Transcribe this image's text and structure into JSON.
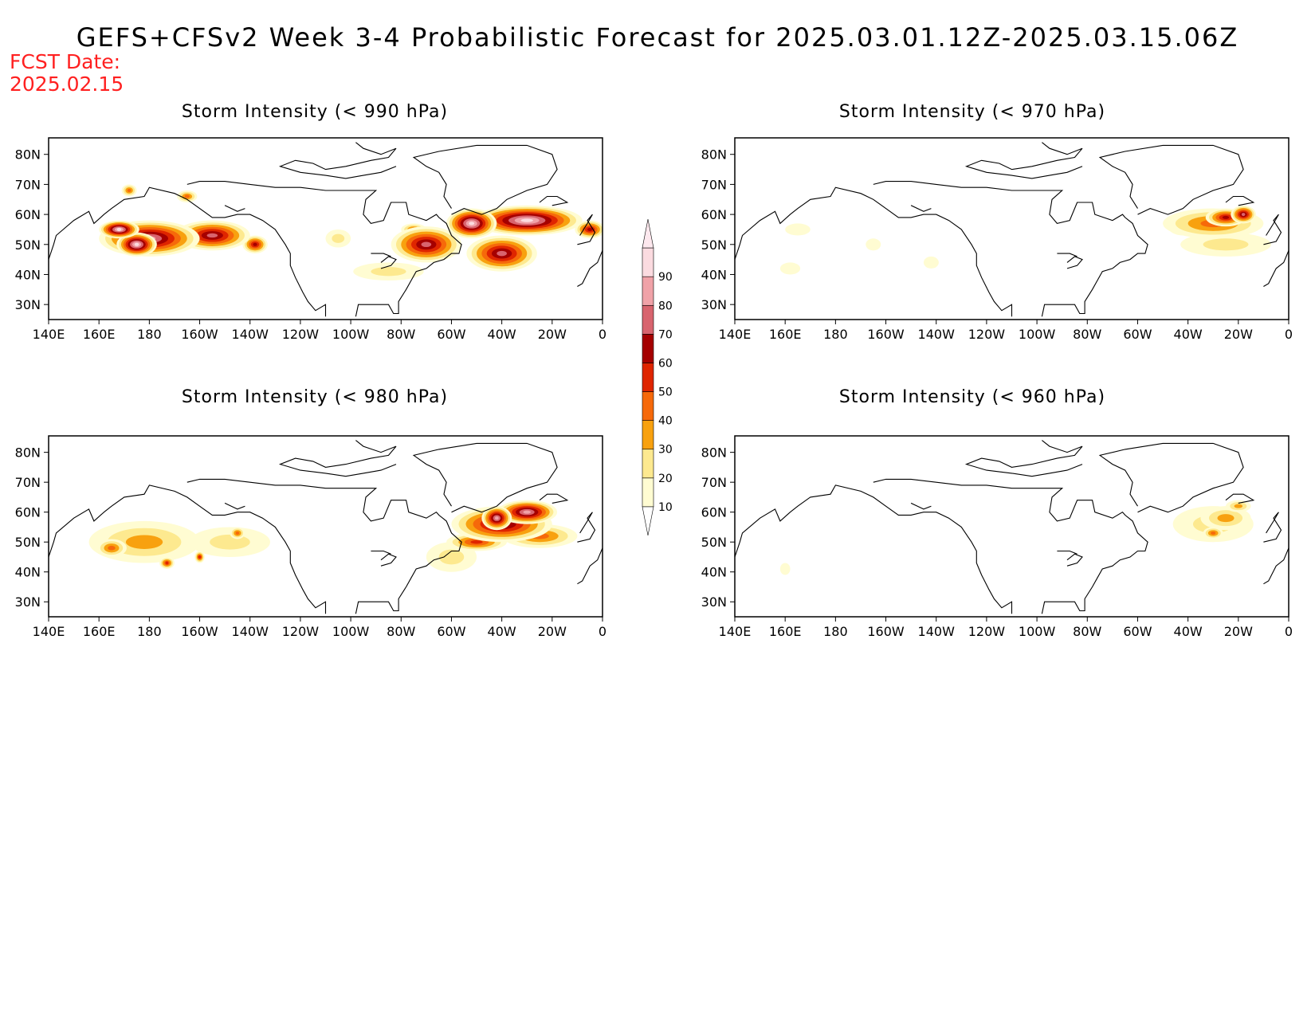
{
  "title": "GEFS+CFSv2 Week 3-4 Probabilistic Forecast for 2025.03.01.12Z-2025.03.15.06Z",
  "fcst_label": "FCST Date:",
  "fcst_date": "2025.02.15",
  "colorbar": {
    "levels": [
      "10",
      "20",
      "30",
      "40",
      "50",
      "60",
      "70",
      "80",
      "90"
    ],
    "colors": [
      "#fffcd2",
      "#fde98f",
      "#f8a10f",
      "#f6690a",
      "#df2500",
      "#a50000",
      "#d8646e",
      "#f0a2a8",
      "#fbdbe0"
    ]
  },
  "axes": {
    "lat_labels": [
      "80N",
      "70N",
      "60N",
      "50N",
      "40N",
      "30N"
    ],
    "lon_labels": [
      "140E",
      "160E",
      "180",
      "160W",
      "140W",
      "120W",
      "100W",
      "80W",
      "60W",
      "40W",
      "20W",
      "0"
    ]
  },
  "panels": [
    {
      "title": "Storm Intensity (< 990 hPa)",
      "blobs": [
        [
          180,
          52,
          20,
          6,
          80
        ],
        [
          175,
          50,
          8,
          4,
          90
        ],
        [
          205,
          53,
          15,
          5,
          70
        ],
        [
          222,
          50,
          5,
          3,
          60
        ],
        [
          168,
          55,
          8,
          3,
          90
        ],
        [
          290,
          50,
          14,
          6,
          70
        ],
        [
          320,
          47,
          14,
          6,
          70
        ],
        [
          330,
          58,
          22,
          5,
          90
        ],
        [
          308,
          57,
          10,
          5,
          90
        ],
        [
          355,
          55,
          6,
          3,
          60
        ],
        [
          275,
          41,
          14,
          3,
          20
        ],
        [
          255,
          52,
          5,
          3,
          20
        ],
        [
          285,
          55,
          5,
          2,
          40
        ],
        [
          172,
          68,
          3,
          2,
          40
        ],
        [
          195,
          66,
          4,
          2,
          40
        ]
      ]
    },
    {
      "title": "Storm Intensity (< 970 hPa)",
      "blobs": [
        [
          330,
          57,
          20,
          5,
          40
        ],
        [
          335,
          59,
          8,
          3,
          60
        ],
        [
          342,
          60,
          5,
          3,
          70
        ],
        [
          318,
          56,
          6,
          3,
          30
        ],
        [
          335,
          50,
          18,
          4,
          20
        ],
        [
          165,
          55,
          5,
          2,
          10
        ],
        [
          162,
          42,
          4,
          2,
          10
        ],
        [
          195,
          50,
          3,
          2,
          10
        ],
        [
          218,
          44,
          3,
          2,
          10
        ]
      ]
    },
    {
      "title": "Storm Intensity (< 980 hPa)",
      "blobs": [
        [
          178,
          50,
          22,
          7,
          30
        ],
        [
          165,
          48,
          6,
          3,
          40
        ],
        [
          187,
          43,
          3,
          2,
          50
        ],
        [
          200,
          45,
          2,
          2,
          50
        ],
        [
          212,
          50,
          16,
          5,
          20
        ],
        [
          215,
          53,
          3,
          2,
          40
        ],
        [
          320,
          56,
          20,
          6,
          70
        ],
        [
          330,
          60,
          12,
          4,
          80
        ],
        [
          318,
          58,
          6,
          4,
          80
        ],
        [
          300,
          45,
          10,
          5,
          20
        ],
        [
          310,
          50,
          12,
          3,
          50
        ],
        [
          335,
          52,
          15,
          4,
          40
        ]
      ]
    },
    {
      "title": "Storm Intensity (< 960 hPa)",
      "blobs": [
        [
          330,
          56,
          16,
          6,
          20
        ],
        [
          335,
          58,
          10,
          4,
          30
        ],
        [
          330,
          53,
          4,
          2,
          40
        ],
        [
          340,
          62,
          5,
          2,
          30
        ],
        [
          160,
          41,
          2,
          2,
          10
        ]
      ]
    }
  ]
}
